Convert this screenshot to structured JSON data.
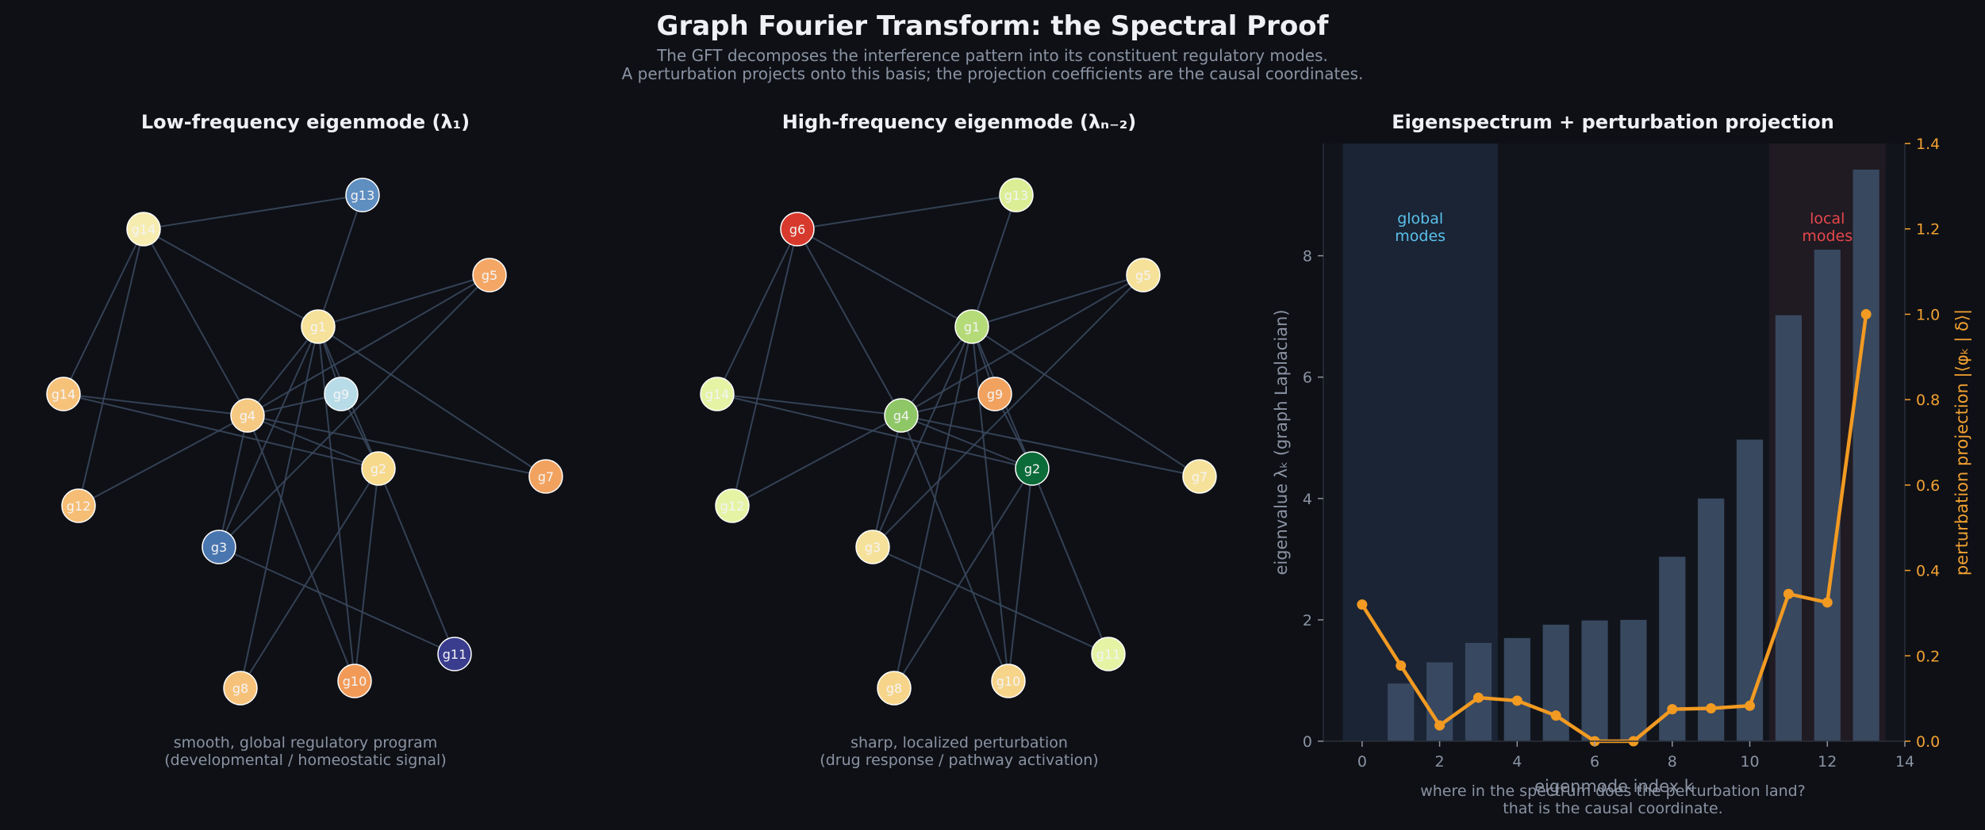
{
  "header": {
    "title": "Graph Fourier Transform: the Spectral Proof",
    "subtitle_line1": "The GFT decomposes the interference pattern into its constituent regulatory modes.",
    "subtitle_line2": "A perturbation projects onto this basis; the projection coefficients are the causal coordinates."
  },
  "graph": {
    "edges": [
      [
        "g14",
        "g13"
      ],
      [
        "g14",
        "g1"
      ],
      [
        "g14",
        "g14b"
      ],
      [
        "g14",
        "g12"
      ],
      [
        "g14",
        "g4"
      ],
      [
        "g13",
        "g1"
      ],
      [
        "g5",
        "g1"
      ],
      [
        "g5",
        "g4"
      ],
      [
        "g5",
        "g3"
      ],
      [
        "g1",
        "g4"
      ],
      [
        "g1",
        "g9"
      ],
      [
        "g1",
        "g2"
      ],
      [
        "g1",
        "g3"
      ],
      [
        "g1",
        "g8"
      ],
      [
        "g1",
        "g7"
      ],
      [
        "g1",
        "g10"
      ],
      [
        "g9",
        "g4"
      ],
      [
        "g9",
        "g2"
      ],
      [
        "g14b",
        "g4"
      ],
      [
        "g14b",
        "g2"
      ],
      [
        "g4",
        "g12"
      ],
      [
        "g4",
        "g2"
      ],
      [
        "g4",
        "g3"
      ],
      [
        "g4",
        "g7"
      ],
      [
        "g4",
        "g10"
      ],
      [
        "g2",
        "g8"
      ],
      [
        "g2",
        "g10"
      ],
      [
        "g2",
        "g11"
      ],
      [
        "g3",
        "g11"
      ]
    ]
  },
  "panels": [
    {
      "title": "Low-frequency eigenmode  (λ₁)",
      "caption_line1": "smooth, global regulatory program",
      "caption_line2": "(developmental / homeostatic signal)",
      "nodes": [
        {
          "id": "g14",
          "label": "g14",
          "color": "#f7ecb0"
        },
        {
          "id": "g13",
          "label": "g13",
          "color": "#5f8ec0"
        },
        {
          "id": "g5",
          "label": "g5",
          "color": "#f4a765"
        },
        {
          "id": "g1",
          "label": "g1",
          "color": "#f6e19a"
        },
        {
          "id": "g14b",
          "label": "g14",
          "color": "#f6c27a"
        },
        {
          "id": "g9",
          "label": "g9",
          "color": "#b8dbe8"
        },
        {
          "id": "g4",
          "label": "g4",
          "color": "#f6c983"
        },
        {
          "id": "g2",
          "label": "g2",
          "color": "#f7d98c"
        },
        {
          "id": "g7",
          "label": "g7",
          "color": "#f2a25f"
        },
        {
          "id": "g12",
          "label": "g12",
          "color": "#f6bd74"
        },
        {
          "id": "g3",
          "label": "g3",
          "color": "#4a76b0"
        },
        {
          "id": "g11",
          "label": "g11",
          "color": "#3a3d8e"
        },
        {
          "id": "g8",
          "label": "g8",
          "color": "#f6c27a"
        },
        {
          "id": "g10",
          "label": "g10",
          "color": "#f19a58"
        }
      ]
    },
    {
      "title": "High-frequency eigenmode  (λₙ₋₂)",
      "caption_line1": "sharp, localized perturbation",
      "caption_line2": "(drug response / pathway activation)",
      "nodes": [
        {
          "id": "g14",
          "label": "g6",
          "color": "#d7392c"
        },
        {
          "id": "g13",
          "label": "g13",
          "color": "#dcee95"
        },
        {
          "id": "g5",
          "label": "g5",
          "color": "#f6e19a"
        },
        {
          "id": "g1",
          "label": "g1",
          "color": "#b4db78"
        },
        {
          "id": "g14b",
          "label": "g14",
          "color": "#e5f3a4"
        },
        {
          "id": "g9",
          "label": "g9",
          "color": "#f2a25f"
        },
        {
          "id": "g4",
          "label": "g4",
          "color": "#8fc767"
        },
        {
          "id": "g2",
          "label": "g2",
          "color": "#0b6b39"
        },
        {
          "id": "g7",
          "label": "g7",
          "color": "#f6e19a"
        },
        {
          "id": "g12",
          "label": "g12",
          "color": "#e5f3a4"
        },
        {
          "id": "g3",
          "label": "g3",
          "color": "#f6e19a"
        },
        {
          "id": "g11",
          "label": "g11",
          "color": "#e5f3a4"
        },
        {
          "id": "g8",
          "label": "g8",
          "color": "#f6d58b"
        },
        {
          "id": "g10",
          "label": "g10",
          "color": "#f6d58b"
        }
      ]
    }
  ],
  "chart_data": {
    "type": "bar",
    "title": "Eigenspectrum + perturbation projection",
    "xlabel": "eigenmode index  k",
    "ylabel": "eigenvalue  λₖ  (graph Laplacian)",
    "y2label": "perturbation projection  |⟨φₖ | δ⟩|",
    "x": [
      0,
      1,
      2,
      3,
      4,
      5,
      6,
      7,
      8,
      9,
      10,
      11,
      12,
      13
    ],
    "eigenvalues": [
      0.0,
      0.95,
      1.3,
      1.62,
      1.7,
      1.92,
      1.99,
      2.0,
      3.04,
      4.0,
      4.97,
      7.02,
      8.1,
      9.42
    ],
    "projection": [
      0.32,
      0.177,
      0.037,
      0.102,
      0.095,
      0.06,
      0.0,
      0.0,
      0.075,
      0.077,
      0.083,
      0.345,
      0.325,
      1.0
    ],
    "xlim": [
      -1,
      14
    ],
    "xticks": [
      0,
      2,
      4,
      6,
      8,
      10,
      12,
      14
    ],
    "ylim": [
      0,
      9.85
    ],
    "yticks": [
      0,
      2,
      4,
      6,
      8
    ],
    "y2lim": [
      0,
      1.4
    ],
    "y2ticks": [
      "0.0",
      "0.2",
      "0.4",
      "0.6",
      "0.8",
      "1.0",
      "1.2",
      "1.4"
    ],
    "regions": [
      {
        "label_line1": "global",
        "label_line2": "modes",
        "from": -0.5,
        "to": 3.5,
        "color": "#5bc0eb"
      },
      {
        "label_line1": "local",
        "label_line2": "modes",
        "from": 10.5,
        "to": 13.5,
        "color": "#e5484d"
      }
    ],
    "bar_color": "#3a4b63",
    "line_color": "#f29a22",
    "caption_line1": "where in the spectrum does the perturbation land?",
    "caption_line2": "that is the causal coordinate."
  }
}
